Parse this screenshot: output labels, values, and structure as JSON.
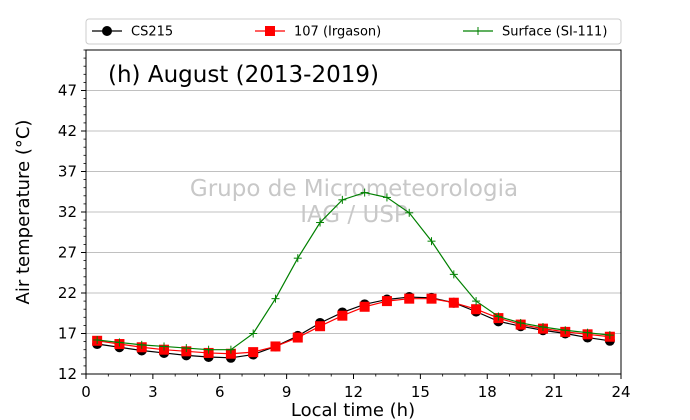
{
  "chart_data": {
    "type": "line",
    "title": "(h) August (2013-2019)",
    "xlabel": "Local time (h)",
    "ylabel": "Air temperature (°C)",
    "xlim": [
      0,
      24
    ],
    "ylim": [
      12,
      52
    ],
    "xticks": [
      0,
      3,
      6,
      9,
      12,
      15,
      18,
      21,
      24
    ],
    "yticks": [
      12,
      17,
      22,
      27,
      32,
      37,
      42,
      47
    ],
    "grid": "horizontal",
    "legend_position": "top",
    "watermark": [
      "Grupo de Micrometeorologia",
      "IAG / USP"
    ],
    "x": [
      0.5,
      1.5,
      2.5,
      3.5,
      4.5,
      5.5,
      6.5,
      7.5,
      8.5,
      9.5,
      10.5,
      11.5,
      12.5,
      13.5,
      14.5,
      15.5,
      16.5,
      17.5,
      18.5,
      19.5,
      20.5,
      21.5,
      22.5,
      23.5
    ],
    "series": [
      {
        "name": "CS215",
        "color": "#000000",
        "marker": "circle",
        "values": [
          15.7,
          15.3,
          14.9,
          14.6,
          14.3,
          14.1,
          14.0,
          14.4,
          15.4,
          16.7,
          18.3,
          19.6,
          20.6,
          21.2,
          21.5,
          21.4,
          20.8,
          19.7,
          18.5,
          17.9,
          17.4,
          17.0,
          16.5,
          16.1
        ]
      },
      {
        "name": "107 (Irgason)",
        "color": "#ff0000",
        "marker": "square",
        "values": [
          16.1,
          15.7,
          15.3,
          15.0,
          14.8,
          14.6,
          14.5,
          14.7,
          15.4,
          16.5,
          17.9,
          19.2,
          20.3,
          21.0,
          21.3,
          21.3,
          20.8,
          20.0,
          18.9,
          18.1,
          17.6,
          17.2,
          16.9,
          16.6
        ]
      },
      {
        "name": "Surface (SI-111)",
        "color": "#008000",
        "marker": "plus",
        "values": [
          16.2,
          15.9,
          15.6,
          15.4,
          15.2,
          15.0,
          15.0,
          17.0,
          21.3,
          26.3,
          30.7,
          33.5,
          34.4,
          33.8,
          31.9,
          28.4,
          24.3,
          21.0,
          19.1,
          18.3,
          17.8,
          17.4,
          17.1,
          16.8
        ]
      }
    ]
  }
}
